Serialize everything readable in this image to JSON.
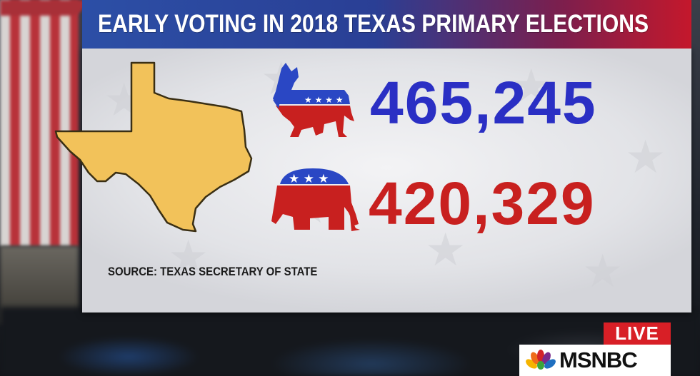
{
  "header": {
    "title": "EARLY VOTING IN 2018 TEXAS PRIMARY ELECTIONS"
  },
  "results": {
    "democratic": {
      "count": "465,245",
      "icon": "democratic-donkey-icon",
      "color": "#2a2fc4"
    },
    "republican": {
      "count": "420,329",
      "icon": "republican-elephant-icon",
      "color": "#c8201f"
    }
  },
  "map": {
    "icon": "texas-map-icon",
    "fill_color": "#f2c25a"
  },
  "source": "SOURCE: TEXAS SECRETARY OF STATE",
  "broadcast": {
    "live_label": "LIVE",
    "network": "MSNBC",
    "live_color": "#d81f26"
  },
  "colors": {
    "header_blue": "#2c4fa6",
    "header_red": "#c4182c"
  }
}
